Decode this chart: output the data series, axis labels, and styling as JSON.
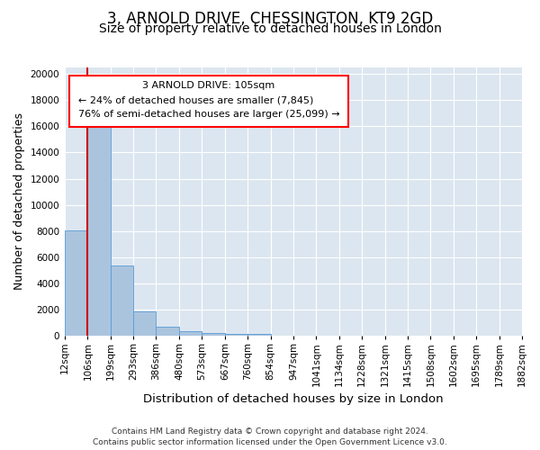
{
  "title_line1": "3, ARNOLD DRIVE, CHESSINGTON, KT9 2GD",
  "title_line2": "Size of property relative to detached houses in London",
  "xlabel": "Distribution of detached houses by size in London",
  "ylabel": "Number of detached properties",
  "footer_line1": "Contains HM Land Registry data © Crown copyright and database right 2024.",
  "footer_line2": "Contains public sector information licensed under the Open Government Licence v3.0.",
  "annotation_line1": "3 ARNOLD DRIVE: 105sqm",
  "annotation_line2": "← 24% of detached houses are smaller (7,845)",
  "annotation_line3": "76% of semi-detached houses are larger (25,099) →",
  "bar_edges": [
    12,
    106,
    199,
    293,
    386,
    480,
    573,
    667,
    760,
    854,
    947,
    1041,
    1134,
    1228,
    1321,
    1415,
    1508,
    1602,
    1695,
    1789,
    1882
  ],
  "bar_heights": [
    8050,
    16550,
    5350,
    1850,
    680,
    310,
    190,
    170,
    120,
    0,
    0,
    0,
    0,
    0,
    0,
    0,
    0,
    0,
    0,
    0
  ],
  "bar_color": "#aac4de",
  "bar_edgecolor": "#5a9bd5",
  "red_line_x": 106,
  "red_line_color": "#cc0000",
  "background_color": "#dce6f0",
  "ylim": [
    0,
    20500
  ],
  "yticks": [
    0,
    2000,
    4000,
    6000,
    8000,
    10000,
    12000,
    14000,
    16000,
    18000,
    20000
  ],
  "grid_color": "#ffffff",
  "title_fontsize": 12,
  "subtitle_fontsize": 10,
  "axis_label_fontsize": 9,
  "tick_fontsize": 7.5,
  "annotation_fontsize": 8
}
